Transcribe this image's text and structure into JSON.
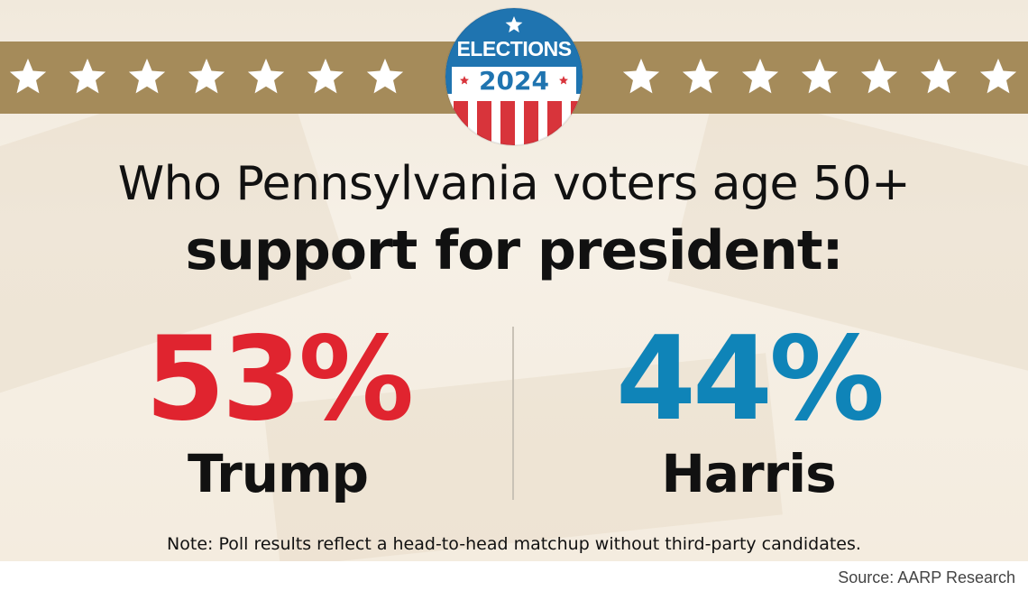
{
  "colors": {
    "trump": "#e0242f",
    "harris": "#0f84b8",
    "banner": "#a58b5a",
    "badge_blue": "#1f74b0",
    "badge_red": "#d8343b"
  },
  "badge": {
    "line1": "ELECTIONS",
    "line2": "2024"
  },
  "headline": {
    "line1": "Who Pennsylvania voters age 50+",
    "line2": "support for president:"
  },
  "results": [
    {
      "percent_label": "53%",
      "percent": 53,
      "candidate": "Trump",
      "color_key": "trump"
    },
    {
      "percent_label": "44%",
      "percent": 44,
      "candidate": "Harris",
      "color_key": "harris"
    }
  ],
  "note": "Note: Poll results reflect a head-to-head matchup without third-party candidates.",
  "source": "Source: AARP Research"
}
